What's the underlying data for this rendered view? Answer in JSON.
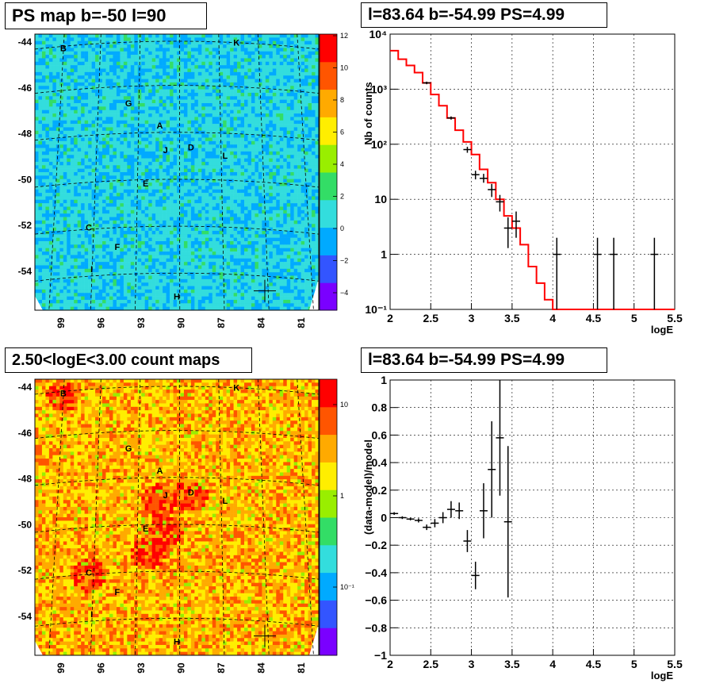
{
  "chart_data": [
    {
      "type": "heatmap",
      "title": "PS map b=-50 l=90",
      "x_tick_labels": [
        "99",
        "96",
        "93",
        "90",
        "87",
        "84",
        "81"
      ],
      "y_tick_labels": [
        "-44",
        "-46",
        "-48",
        "-50",
        "-52",
        "-54"
      ],
      "colorbar_ticks": [
        "12",
        "10",
        "8",
        "6",
        "4",
        "2",
        "0",
        "−2",
        "−4"
      ],
      "colorbar_range": [
        -5,
        12
      ],
      "source_labels": [
        "B",
        "K",
        "G",
        "A",
        "J",
        "D",
        "L",
        "E",
        "C",
        "F",
        "I",
        "H"
      ],
      "marked_source": {
        "l": 83.64,
        "b": -54.99
      },
      "palette": [
        "#7a00ff",
        "#3355ff",
        "#00aaff",
        "#33dddd",
        "#33dd66",
        "#99ee00",
        "#ffee00",
        "#ffaa00",
        "#ff5500",
        "#ff0000"
      ]
    },
    {
      "type": "line",
      "title": "l=83.64 b=-54.99 PS=4.99",
      "xlabel": "logE",
      "ylabel": "Nb of counts",
      "xlim": [
        2,
        5.5
      ],
      "ylim": [
        0.1,
        10000
      ],
      "y_scale": "log",
      "grid": true,
      "x_tick_labels": [
        "2",
        "2.5",
        "3",
        "3.5",
        "4",
        "4.5",
        "5",
        "5.5"
      ],
      "y_tick_labels": [
        "10⁻¹",
        "1",
        "10",
        "10²",
        "10³",
        "10⁴"
      ],
      "model_step": {
        "color": "#ff0000",
        "edges": [
          2.0,
          2.1,
          2.2,
          2.3,
          2.4,
          2.5,
          2.6,
          2.7,
          2.8,
          2.9,
          3.0,
          3.1,
          3.2,
          3.3,
          3.4,
          3.5,
          3.6,
          3.7,
          3.8,
          3.9,
          4.0,
          5.5
        ],
        "values": [
          5000,
          3500,
          2700,
          2000,
          1300,
          800,
          500,
          300,
          180,
          110,
          65,
          35,
          20,
          10,
          5,
          3,
          1.5,
          0.6,
          0.3,
          0.15,
          0.1
        ]
      },
      "data_points": [
        {
          "x": 2.45,
          "y": 1300,
          "ylo": 1230,
          "yhi": 1370
        },
        {
          "x": 2.75,
          "y": 300,
          "ylo": 280,
          "yhi": 320
        },
        {
          "x": 2.95,
          "y": 80,
          "ylo": 70,
          "yhi": 90
        },
        {
          "x": 3.05,
          "y": 28,
          "ylo": 23,
          "yhi": 33
        },
        {
          "x": 3.15,
          "y": 24,
          "ylo": 20,
          "yhi": 29
        },
        {
          "x": 3.25,
          "y": 15,
          "ylo": 11,
          "yhi": 19
        },
        {
          "x": 3.35,
          "y": 9,
          "ylo": 6,
          "yhi": 12
        },
        {
          "x": 3.45,
          "y": 3,
          "ylo": 1.3,
          "yhi": 4.7
        },
        {
          "x": 3.55,
          "y": 4,
          "ylo": 2,
          "yhi": 6
        },
        {
          "x": 4.05,
          "y": 1,
          "ylo": 0.1,
          "yhi": 2
        },
        {
          "x": 4.55,
          "y": 1,
          "ylo": 0.1,
          "yhi": 2
        },
        {
          "x": 4.75,
          "y": 1,
          "ylo": 0.1,
          "yhi": 2
        },
        {
          "x": 5.25,
          "y": 1,
          "ylo": 0.1,
          "yhi": 2
        }
      ]
    },
    {
      "type": "heatmap",
      "title": "2.50<logE<3.00 count maps",
      "x_tick_labels": [
        "99",
        "96",
        "93",
        "90",
        "87",
        "84",
        "81"
      ],
      "y_tick_labels": [
        "-44",
        "-46",
        "-48",
        "-50",
        "-52",
        "-54"
      ],
      "colorbar_ticks": [
        "10",
        "1",
        "10⁻¹"
      ],
      "colorbar_scale": "log",
      "source_labels": [
        "B",
        "K",
        "G",
        "A",
        "J",
        "D",
        "L",
        "E",
        "C",
        "F",
        "I",
        "H"
      ],
      "marked_source": {
        "l": 83.64,
        "b": -54.99
      },
      "palette": [
        "#7a00ff",
        "#3355ff",
        "#00aaff",
        "#33dddd",
        "#33dd66",
        "#99ee00",
        "#ffee00",
        "#ffaa00",
        "#ff5500",
        "#ff0000"
      ]
    },
    {
      "type": "scatter",
      "title": "l=83.64 b=-54.99 PS=4.99",
      "xlabel": "logE",
      "ylabel": "(data-model)/model",
      "xlim": [
        2,
        5.5
      ],
      "ylim": [
        -1,
        1
      ],
      "grid": true,
      "x_tick_labels": [
        "2",
        "2.5",
        "3",
        "3.5",
        "4",
        "4.5",
        "5",
        "5.5"
      ],
      "y_tick_labels": [
        "−1",
        "−0.8",
        "−0.6",
        "−0.4",
        "−0.2",
        "0",
        "0.2",
        "0.4",
        "0.6",
        "0.8",
        "1"
      ],
      "data_points": [
        {
          "x": 2.05,
          "y": 0.03,
          "err": 0.01
        },
        {
          "x": 2.15,
          "y": 0.0,
          "err": 0.01
        },
        {
          "x": 2.25,
          "y": -0.01,
          "err": 0.01
        },
        {
          "x": 2.35,
          "y": -0.02,
          "err": 0.015
        },
        {
          "x": 2.45,
          "y": -0.07,
          "err": 0.02
        },
        {
          "x": 2.55,
          "y": -0.04,
          "err": 0.03
        },
        {
          "x": 2.65,
          "y": 0.0,
          "err": 0.04
        },
        {
          "x": 2.75,
          "y": 0.06,
          "err": 0.06
        },
        {
          "x": 2.85,
          "y": 0.05,
          "err": 0.06
        },
        {
          "x": 2.95,
          "y": -0.17,
          "err": 0.08
        },
        {
          "x": 3.05,
          "y": -0.42,
          "err": 0.1
        },
        {
          "x": 3.15,
          "y": 0.05,
          "err": 0.2
        },
        {
          "x": 3.25,
          "y": 0.35,
          "err": 0.35
        },
        {
          "x": 3.35,
          "y": 0.58,
          "err": 0.42
        },
        {
          "x": 3.45,
          "y": -0.03,
          "err": 0.55
        }
      ]
    }
  ]
}
